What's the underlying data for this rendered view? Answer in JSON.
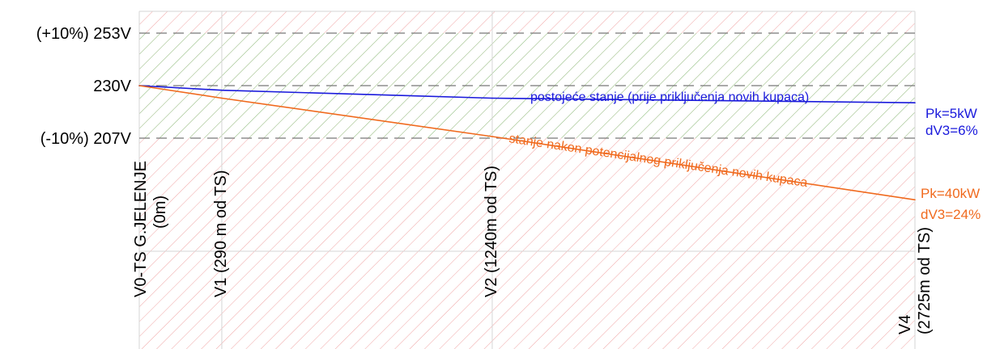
{
  "chart_data": {
    "type": "line",
    "y_axis": {
      "ticks": [
        {
          "value": 253,
          "label": "(+10%) 253V"
        },
        {
          "value": 230,
          "label": "230V"
        },
        {
          "value": 207,
          "label": "(-10%) 207V"
        }
      ],
      "allowed_band": [
        207,
        253
      ]
    },
    "x_axis": {
      "unit": "m",
      "range": [
        0,
        2725
      ],
      "points": [
        {
          "x": 0,
          "label_line1": "V0-TS  G.JELENJE",
          "label_line2": "(0m)"
        },
        {
          "x": 290,
          "label_line1": "V1 (290 m od TS)",
          "label_line2": ""
        },
        {
          "x": 1240,
          "label_line1": "V2 (1240m od TS)",
          "label_line2": ""
        },
        {
          "x": 2725,
          "label_line1": "V4",
          "label_line2": "(2725m od TS)"
        }
      ]
    },
    "series": [
      {
        "name": "postojeće stanje (prije priključenja novih kupaca)",
        "color": "#1a1adc",
        "x": [
          0,
          290,
          1240,
          2725
        ],
        "y": [
          230,
          228,
          224.5,
          222.5
        ],
        "end_labels": [
          "Pk=5kW",
          "dV3=6%"
        ]
      },
      {
        "name": "stanje nakon potencijalnog priključenja novih kupaca",
        "color": "#f06a1e",
        "x": [
          0,
          290,
          1240,
          2725
        ],
        "y": [
          230,
          224.5,
          207.7,
          180
        ],
        "end_labels": [
          "Pk=40kW",
          "dV3=24%"
        ]
      }
    ],
    "band_colors": {
      "allowed": "#8fd18f",
      "outside": "#f0a5a5",
      "dashed_line": "#777777",
      "grid": "#d6d6d6"
    }
  }
}
